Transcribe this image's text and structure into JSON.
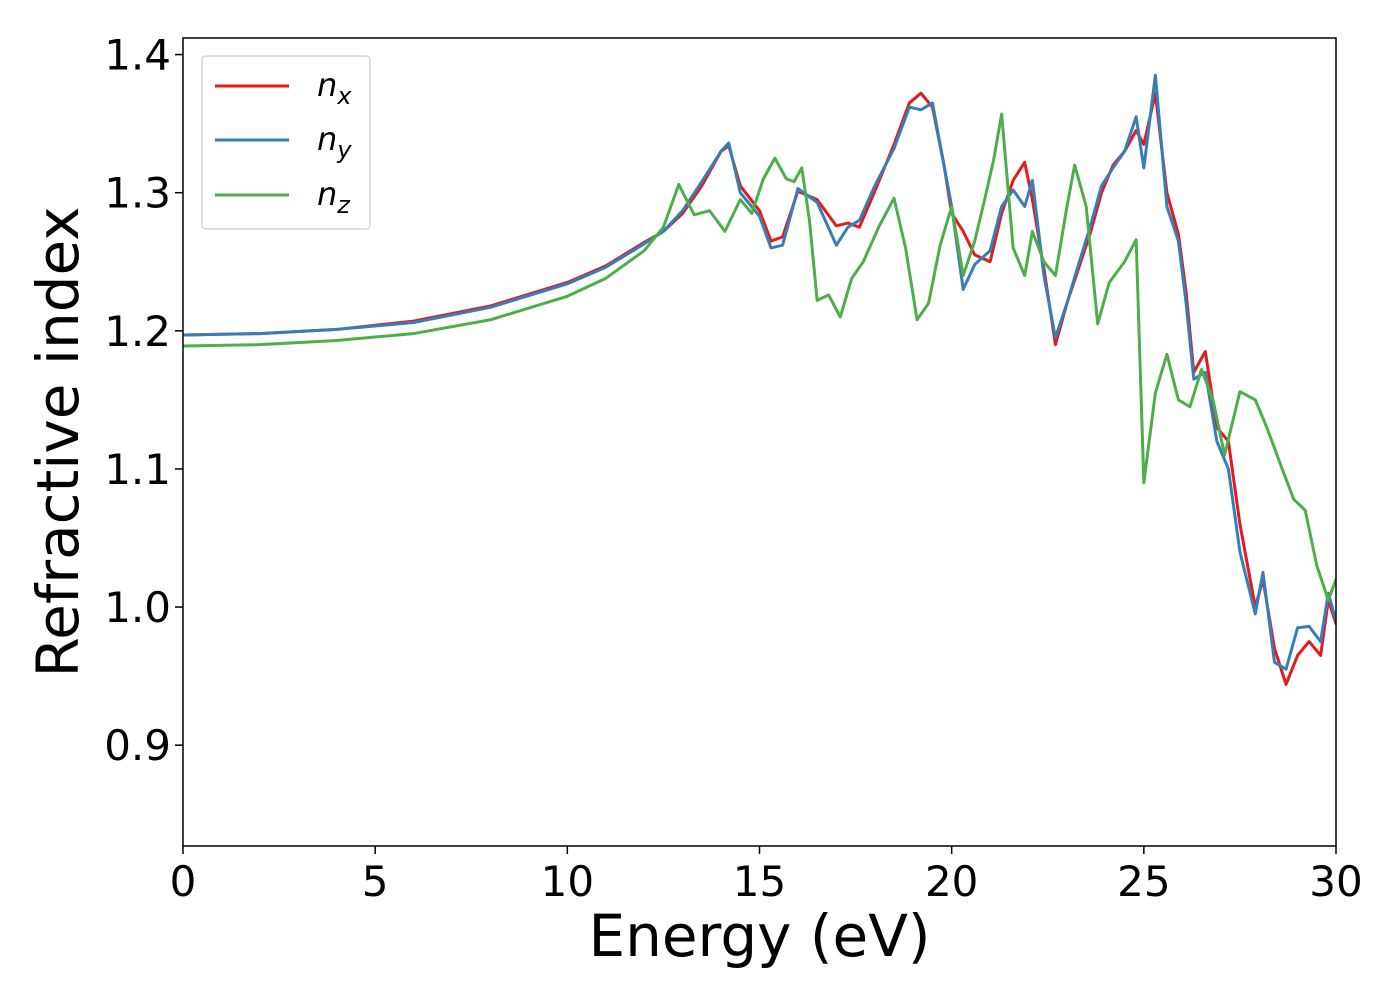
{
  "chart_data": {
    "type": "line",
    "title": "",
    "xlabel": "Energy (eV)",
    "ylabel": "Refractive index",
    "xlim": [
      0,
      30
    ],
    "ylim": [
      0.827,
      1.412
    ],
    "x_ticks": [
      0,
      5,
      10,
      15,
      20,
      25,
      30
    ],
    "y_ticks": [
      0.9,
      1.0,
      1.1,
      1.2,
      1.3,
      1.4
    ],
    "x_tick_labels": [
      "0",
      "5",
      "10",
      "15",
      "20",
      "25",
      "30"
    ],
    "y_tick_labels": [
      "0.9",
      "1.0",
      "1.1",
      "1.2",
      "1.3",
      "1.4"
    ],
    "grid": false,
    "legend_position": "top-left",
    "series": [
      {
        "name": "n_x",
        "label_base": "n",
        "label_sub": "x",
        "color": "#e41a1c",
        "x": [
          0,
          2,
          4,
          6,
          8,
          10,
          11,
          12,
          12.5,
          13,
          13.5,
          14,
          14.2,
          14.5,
          15,
          15.3,
          15.6,
          16,
          16.5,
          17,
          17.3,
          17.6,
          18,
          18.5,
          18.9,
          19.2,
          19.5,
          19.8,
          20,
          20.3,
          20.6,
          21,
          21.3,
          21.6,
          21.9,
          22.1,
          22.4,
          22.7,
          23,
          23.3,
          23.6,
          23.9,
          24.2,
          24.5,
          24.8,
          25,
          25.3,
          25.6,
          25.9,
          26.1,
          26.3,
          26.6,
          26.9,
          27.2,
          27.5,
          27.9,
          28.1,
          28.4,
          28.7,
          29,
          29.3,
          29.6,
          29.8,
          30
        ],
        "y": [
          1.197,
          1.198,
          1.201,
          1.207,
          1.218,
          1.235,
          1.247,
          1.264,
          1.272,
          1.285,
          1.305,
          1.33,
          1.334,
          1.305,
          1.287,
          1.265,
          1.268,
          1.301,
          1.295,
          1.276,
          1.278,
          1.275,
          1.301,
          1.335,
          1.365,
          1.372,
          1.362,
          1.32,
          1.285,
          1.272,
          1.255,
          1.25,
          1.285,
          1.309,
          1.322,
          1.295,
          1.245,
          1.19,
          1.22,
          1.245,
          1.27,
          1.3,
          1.32,
          1.33,
          1.345,
          1.335,
          1.372,
          1.3,
          1.27,
          1.228,
          1.17,
          1.185,
          1.13,
          1.12,
          1.06,
          1.0,
          1.02,
          0.97,
          0.944,
          0.965,
          0.975,
          0.965,
          1.005,
          0.988
        ]
      },
      {
        "name": "n_y",
        "label_base": "n",
        "label_sub": "y",
        "color": "#377eb8",
        "x": [
          0,
          2,
          4,
          6,
          8,
          10,
          11,
          12,
          12.5,
          13,
          13.5,
          14,
          14.2,
          14.5,
          15,
          15.3,
          15.6,
          16,
          16.5,
          17,
          17.3,
          17.6,
          18,
          18.5,
          18.9,
          19.2,
          19.5,
          19.8,
          20,
          20.3,
          20.6,
          21,
          21.3,
          21.6,
          21.9,
          22.1,
          22.4,
          22.7,
          23,
          23.3,
          23.6,
          23.9,
          24.2,
          24.5,
          24.8,
          25,
          25.3,
          25.6,
          25.9,
          26.1,
          26.3,
          26.6,
          26.9,
          27.2,
          27.5,
          27.9,
          28.1,
          28.4,
          28.7,
          29,
          29.3,
          29.6,
          29.8,
          30
        ],
        "y": [
          1.197,
          1.198,
          1.201,
          1.206,
          1.217,
          1.234,
          1.246,
          1.263,
          1.272,
          1.287,
          1.308,
          1.33,
          1.336,
          1.3,
          1.283,
          1.26,
          1.262,
          1.303,
          1.293,
          1.262,
          1.275,
          1.28,
          1.305,
          1.332,
          1.362,
          1.36,
          1.365,
          1.32,
          1.29,
          1.23,
          1.248,
          1.258,
          1.29,
          1.302,
          1.29,
          1.309,
          1.24,
          1.195,
          1.22,
          1.248,
          1.275,
          1.305,
          1.318,
          1.33,
          1.355,
          1.318,
          1.385,
          1.29,
          1.265,
          1.22,
          1.165,
          1.17,
          1.12,
          1.1,
          1.04,
          0.995,
          1.025,
          0.96,
          0.955,
          0.985,
          0.986,
          0.975,
          1.01,
          0.99
        ]
      },
      {
        "name": "n_z",
        "label_base": "n",
        "label_sub": "z",
        "color": "#4daf4a",
        "x": [
          0,
          2,
          4,
          6,
          8,
          10,
          11,
          12,
          12.5,
          12.9,
          13.3,
          13.7,
          14.1,
          14.5,
          14.8,
          15.1,
          15.4,
          15.7,
          15.9,
          16.1,
          16.3,
          16.5,
          16.8,
          17.1,
          17.4,
          17.7,
          18.1,
          18.5,
          18.8,
          19.1,
          19.4,
          19.7,
          20.0,
          20.3,
          20.6,
          20.9,
          21.1,
          21.3,
          21.6,
          21.9,
          22.1,
          22.4,
          22.7,
          23.0,
          23.2,
          23.5,
          23.8,
          24.1,
          24.5,
          24.8,
          25.0,
          25.3,
          25.6,
          25.9,
          26.2,
          26.5,
          26.8,
          27.1,
          27.5,
          27.9,
          28.2,
          28.6,
          28.9,
          29.2,
          29.5,
          29.8,
          30
        ],
        "y": [
          1.189,
          1.19,
          1.193,
          1.198,
          1.208,
          1.225,
          1.238,
          1.258,
          1.275,
          1.306,
          1.284,
          1.287,
          1.272,
          1.295,
          1.285,
          1.31,
          1.325,
          1.31,
          1.308,
          1.318,
          1.28,
          1.222,
          1.226,
          1.21,
          1.238,
          1.25,
          1.275,
          1.296,
          1.26,
          1.208,
          1.22,
          1.262,
          1.29,
          1.24,
          1.265,
          1.3,
          1.325,
          1.357,
          1.26,
          1.24,
          1.272,
          1.25,
          1.24,
          1.29,
          1.32,
          1.29,
          1.205,
          1.235,
          1.25,
          1.266,
          1.09,
          1.155,
          1.183,
          1.15,
          1.145,
          1.172,
          1.15,
          1.11,
          1.156,
          1.15,
          1.13,
          1.1,
          1.078,
          1.07,
          1.03,
          1.005,
          1.02
        ]
      }
    ]
  }
}
